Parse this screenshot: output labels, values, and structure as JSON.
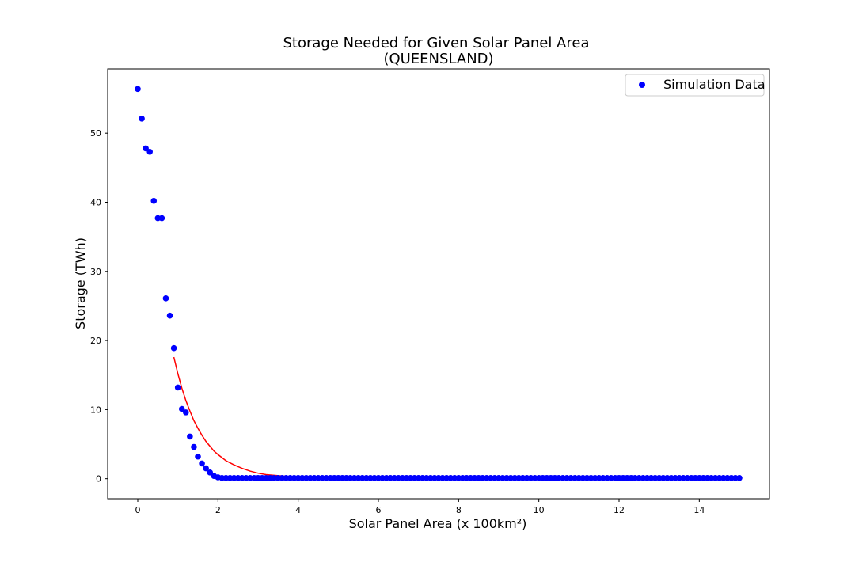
{
  "chart_data": {
    "type": "scatter",
    "title": "Storage Needed for Given Solar Panel Area",
    "subtitle": "(QUEENSLAND)",
    "xlabel": "Solar Panel Area (x 100km²)",
    "ylabel": "Storage (TWh)",
    "xlim": [
      -0.75,
      15.75
    ],
    "ylim": [
      -2.9,
      59.3
    ],
    "xticks": [
      0,
      2,
      4,
      6,
      8,
      10,
      12,
      14
    ],
    "yticks": [
      0,
      10,
      20,
      30,
      40,
      50
    ],
    "grid": false,
    "legend_position": "upper right",
    "series": [
      {
        "name": "Simulation Data",
        "kind": "scatter",
        "color": "#0000ff",
        "x": [
          0.0,
          0.1,
          0.2,
          0.3,
          0.4,
          0.5,
          0.6,
          0.7,
          0.8,
          0.9,
          1.0,
          1.1,
          1.2,
          1.3,
          1.4,
          1.5,
          1.6,
          1.7,
          1.8,
          1.9,
          2.0,
          2.1,
          2.2,
          2.3,
          2.4,
          2.5,
          2.6,
          2.7,
          2.8,
          2.9,
          3.0,
          3.1,
          3.2,
          3.3,
          3.4,
          3.5,
          3.6,
          3.7,
          3.8,
          3.9,
          4.0,
          4.1,
          4.2,
          4.3,
          4.4,
          4.5,
          4.6,
          4.7,
          4.8,
          4.9,
          5.0,
          5.1,
          5.2,
          5.3,
          5.4,
          5.5,
          5.6,
          5.7,
          5.8,
          5.9,
          6.0,
          6.1,
          6.2,
          6.3,
          6.4,
          6.5,
          6.6,
          6.7,
          6.8,
          6.9,
          7.0,
          7.1,
          7.2,
          7.3,
          7.4,
          7.5,
          7.6,
          7.7,
          7.8,
          7.9,
          8.0,
          8.1,
          8.2,
          8.3,
          8.4,
          8.5,
          8.6,
          8.7,
          8.8,
          8.9,
          9.0,
          9.1,
          9.2,
          9.3,
          9.4,
          9.5,
          9.6,
          9.7,
          9.8,
          9.9,
          10.0,
          10.1,
          10.2,
          10.3,
          10.4,
          10.5,
          10.6,
          10.7,
          10.8,
          10.9,
          11.0,
          11.1,
          11.2,
          11.3,
          11.4,
          11.5,
          11.6,
          11.7,
          11.8,
          11.9,
          12.0,
          12.1,
          12.2,
          12.3,
          12.4,
          12.5,
          12.6,
          12.7,
          12.8,
          12.9,
          13.0,
          13.1,
          13.2,
          13.3,
          13.4,
          13.5,
          13.6,
          13.7,
          13.8,
          13.9,
          14.0,
          14.1,
          14.2,
          14.3,
          14.4,
          14.5,
          14.6,
          14.7,
          14.8,
          14.9,
          15.0
        ],
        "y": [
          56.4,
          52.1,
          47.8,
          47.3,
          40.2,
          37.7,
          37.7,
          26.1,
          23.6,
          18.9,
          13.2,
          10.1,
          9.6,
          6.1,
          4.6,
          3.2,
          2.2,
          1.5,
          0.9,
          0.4,
          0.2,
          0.1,
          0.1,
          0.1,
          0.1,
          0.1,
          0.1,
          0.1,
          0.1,
          0.1,
          0.1,
          0.1,
          0.1,
          0.1,
          0.1,
          0.1,
          0.1,
          0.1,
          0.1,
          0.1,
          0.1,
          0.1,
          0.1,
          0.1,
          0.1,
          0.1,
          0.1,
          0.1,
          0.1,
          0.1,
          0.1,
          0.1,
          0.1,
          0.1,
          0.1,
          0.1,
          0.1,
          0.1,
          0.1,
          0.1,
          0.1,
          0.1,
          0.1,
          0.1,
          0.1,
          0.1,
          0.1,
          0.1,
          0.1,
          0.1,
          0.1,
          0.1,
          0.1,
          0.1,
          0.1,
          0.1,
          0.1,
          0.1,
          0.1,
          0.1,
          0.1,
          0.1,
          0.1,
          0.1,
          0.1,
          0.1,
          0.1,
          0.1,
          0.1,
          0.1,
          0.1,
          0.1,
          0.1,
          0.1,
          0.1,
          0.1,
          0.1,
          0.1,
          0.1,
          0.1,
          0.1,
          0.1,
          0.1,
          0.1,
          0.1,
          0.1,
          0.1,
          0.1,
          0.1,
          0.1,
          0.1,
          0.1,
          0.1,
          0.1,
          0.1,
          0.1,
          0.1,
          0.1,
          0.1,
          0.1,
          0.1,
          0.1,
          0.1,
          0.1,
          0.1,
          0.1,
          0.1,
          0.1,
          0.1,
          0.1,
          0.1,
          0.1,
          0.1,
          0.1,
          0.1,
          0.1,
          0.1,
          0.1,
          0.1,
          0.1,
          0.1,
          0.1,
          0.1,
          0.1,
          0.1,
          0.1,
          0.1,
          0.1,
          0.1,
          0.1,
          0.1
        ]
      },
      {
        "name": "",
        "kind": "line",
        "color": "#ff0000",
        "x": [
          0.9,
          1.0,
          1.1,
          1.2,
          1.3,
          1.4,
          1.5,
          1.6,
          1.7,
          1.8,
          1.9,
          2.0,
          2.2,
          2.4,
          2.6,
          2.8,
          3.0,
          3.2,
          3.4,
          3.6,
          3.8,
          4.0,
          4.5,
          5.0,
          6.0,
          8.0,
          10.0,
          12.0,
          14.0,
          15.0
        ],
        "y": [
          17.6,
          15.2,
          13.1,
          11.3,
          9.8,
          8.4,
          7.3,
          6.3,
          5.4,
          4.7,
          4.0,
          3.5,
          2.6,
          2.0,
          1.5,
          1.1,
          0.8,
          0.6,
          0.5,
          0.4,
          0.3,
          0.3,
          0.2,
          0.2,
          0.2,
          0.2,
          0.2,
          0.2,
          0.2,
          0.2
        ]
      }
    ]
  }
}
